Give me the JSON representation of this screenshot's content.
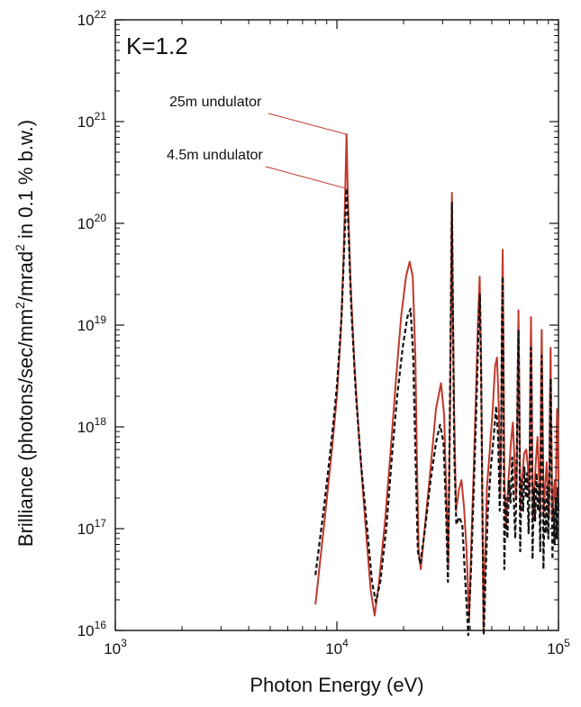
{
  "chart_data": {
    "type": "line",
    "xlabel": "Photon Energy (eV)",
    "ylabel_parts": [
      "Brilliance (photons/sec/mm",
      "2",
      "/mrad",
      "2",
      " in 0.1 % b.w.)"
    ],
    "x_scale": "log",
    "y_scale": "log",
    "xlim": [
      1000,
      100000
    ],
    "ylim": [
      1e+16,
      1e+22
    ],
    "x_ticks": [
      {
        "value": 1000,
        "base": "10",
        "exp": "3"
      },
      {
        "value": 10000,
        "base": "10",
        "exp": "4"
      },
      {
        "value": 100000,
        "base": "10",
        "exp": "5"
      }
    ],
    "y_ticks": [
      {
        "value": 1e+16,
        "base": "10",
        "exp": "16"
      },
      {
        "value": 1e+17,
        "base": "10",
        "exp": "17"
      },
      {
        "value": 1e+18,
        "base": "10",
        "exp": "18"
      },
      {
        "value": 1e+19,
        "base": "10",
        "exp": "19"
      },
      {
        "value": 1e+20,
        "base": "10",
        "exp": "20"
      },
      {
        "value": 1e+21,
        "base": "10",
        "exp": "21"
      },
      {
        "value": 1e+22,
        "base": "10",
        "exp": "22"
      }
    ],
    "grid": false,
    "corner_label": "K=1.2",
    "series": [
      {
        "name": "25m undulator",
        "color": "#c0392b",
        "style": "solid",
        "points": [
          [
            8000,
            1.8e+16
          ],
          [
            8800,
            1.2e+17
          ],
          [
            9500,
            6e+17
          ],
          [
            10000,
            2e+18
          ],
          [
            10400,
            8e+18
          ],
          [
            10700,
            4e+19
          ],
          [
            10900,
            2e+20
          ],
          [
            11050,
            7.5e+20
          ],
          [
            11200,
            2e+20
          ],
          [
            11500,
            3e+19
          ],
          [
            12000,
            4e+18
          ],
          [
            12700,
            6e+17
          ],
          [
            13500,
            1e+17
          ],
          [
            14200,
            2.5e+16
          ],
          [
            14800,
            1.4e+16
          ],
          [
            15500,
            3e+16
          ],
          [
            16500,
            1.2e+17
          ],
          [
            17500,
            6e+17
          ],
          [
            18500,
            3e+18
          ],
          [
            19500,
            1.2e+19
          ],
          [
            20500,
            3e+19
          ],
          [
            21300,
            4.2e+19
          ],
          [
            22000,
            3e+19
          ],
          [
            22600,
            5e+18
          ],
          [
            23000,
            4e+17
          ],
          [
            23400,
            6e+16
          ],
          [
            23900,
            4e+16
          ],
          [
            25000,
            1.1e+17
          ],
          [
            26500,
            4e+17
          ],
          [
            28000,
            1.5e+18
          ],
          [
            29500,
            2.7e+18
          ],
          [
            30500,
            1.3e+18
          ],
          [
            31200,
            2e+17
          ],
          [
            31800,
            4e+16
          ],
          [
            32400,
            1.5e+18
          ],
          [
            32800,
            3e+19
          ],
          [
            33050,
            2e+20
          ],
          [
            33300,
            3e+19
          ],
          [
            33800,
            1.5e+18
          ],
          [
            34500,
            1.5e+17
          ],
          [
            35500,
            2.4e+17
          ],
          [
            36500,
            3e+17
          ],
          [
            37500,
            1.6e+17
          ],
          [
            38500,
            6e+16
          ],
          [
            39500,
            1.3e+16
          ],
          [
            40500,
            8e+16
          ],
          [
            41500,
            4e+17
          ],
          [
            42500,
            2.5e+18
          ],
          [
            43400,
            1.2e+19
          ],
          [
            44100,
            3e+19
          ],
          [
            44700,
            5e+18
          ],
          [
            45300,
            2e+17
          ],
          [
            45900,
            1e+16
          ],
          [
            46500,
            4e+16
          ],
          [
            47500,
            2.5e+17
          ],
          [
            49000,
            6e+17
          ],
          [
            50500,
            1.5e+18
          ],
          [
            51800,
            4e+18
          ],
          [
            52800,
            4.8e+18
          ],
          [
            53800,
            1.5e+18
          ],
          [
            54600,
            2e+17
          ],
          [
            55200,
            8e+17
          ],
          [
            55700,
            2e+19
          ],
          [
            56000,
            5.5e+19
          ],
          [
            56400,
            8e+18
          ],
          [
            57000,
            3e+17
          ],
          [
            58000,
            1e+17
          ],
          [
            59500,
            3e+17
          ],
          [
            61000,
            7e+17
          ],
          [
            62200,
            1.1e+18
          ],
          [
            63300,
            5e+17
          ],
          [
            64200,
            2e+17
          ],
          [
            64800,
            3e+17
          ],
          [
            65500,
            4e+18
          ],
          [
            66000,
            1.4e+19
          ],
          [
            66500,
            3e+18
          ],
          [
            67300,
            1.5e+17
          ],
          [
            68500,
            3e+17
          ],
          [
            70000,
            5.5e+17
          ],
          [
            71500,
            6e+17
          ],
          [
            72800,
            4e+17
          ],
          [
            73800,
            2e+17
          ],
          [
            74600,
            3e+18
          ],
          [
            75200,
            1.2e+19
          ],
          [
            75800,
            2e+18
          ],
          [
            76600,
            1.2e+17
          ],
          [
            77500,
            2e+17
          ],
          [
            79000,
            4.5e+17
          ],
          [
            80500,
            8e+17
          ],
          [
            81800,
            3e+17
          ],
          [
            82700,
            1.3e+17
          ],
          [
            83500,
            3e+18
          ],
          [
            84000,
            9e+18
          ],
          [
            84700,
            1.5e+18
          ],
          [
            85700,
            1.4e+17
          ],
          [
            87000,
            2.5e+17
          ],
          [
            88500,
            4.5e+17
          ],
          [
            89800,
            2e+17
          ],
          [
            90700,
            1.3e+17
          ],
          [
            91500,
            1.8e+18
          ],
          [
            92200,
            6e+18
          ],
          [
            92800,
            1.2e+18
          ],
          [
            93800,
            1.2e+17
          ],
          [
            95000,
            2.2e+17
          ],
          [
            96200,
            3e+17
          ],
          [
            97000,
            1.5e+17
          ],
          [
            97800,
            5e+17
          ],
          [
            98500,
            1.5e+18
          ],
          [
            99300,
            1.2e+18
          ],
          [
            100000,
            3e+17
          ]
        ]
      },
      {
        "name": "4.5m undulator",
        "color": "#111111",
        "style": "dashed",
        "points": [
          [
            8000,
            3.5e+16
          ],
          [
            8800,
            1.8e+17
          ],
          [
            9500,
            8e+17
          ],
          [
            10000,
            2.5e+18
          ],
          [
            10500,
            1.2e+19
          ],
          [
            10800,
            6e+19
          ],
          [
            11050,
            2.2e+20
          ],
          [
            11250,
            1e+20
          ],
          [
            11600,
            1.5e+19
          ],
          [
            12200,
            2e+18
          ],
          [
            12900,
            4e+17
          ],
          [
            13700,
            1e+17
          ],
          [
            14400,
            3e+16
          ],
          [
            15000,
            1.9e+16
          ],
          [
            15700,
            3e+16
          ],
          [
            16700,
            1e+17
          ],
          [
            17700,
            5e+17
          ],
          [
            18700,
            2e+18
          ],
          [
            19800,
            6e+18
          ],
          [
            20800,
            1.2e+19
          ],
          [
            21500,
            1.45e+19
          ],
          [
            22100,
            5e+18
          ],
          [
            22700,
            4e+17
          ],
          [
            23200,
            6e+16
          ],
          [
            23800,
            4.5e+16
          ],
          [
            25000,
            1e+17
          ],
          [
            26500,
            3e+17
          ],
          [
            28000,
            7e+17
          ],
          [
            29200,
            1.05e+18
          ],
          [
            30300,
            7e+17
          ],
          [
            31100,
            1.5e+17
          ],
          [
            31700,
            3e+16
          ],
          [
            32200,
            5e+17
          ],
          [
            32700,
            1.5e+19
          ],
          [
            33050,
            1.6e+20
          ],
          [
            33350,
            1.5e+19
          ],
          [
            33900,
            5e+17
          ],
          [
            34600,
            1.1e+17
          ],
          [
            35600,
            1.3e+17
          ],
          [
            36800,
            1.1e+17
          ],
          [
            38000,
            3e+16
          ],
          [
            39200,
            9000000000000000.0
          ],
          [
            40300,
            4e+16
          ],
          [
            41500,
            2.5e+17
          ],
          [
            42600,
            1.5e+18
          ],
          [
            43500,
            8e+18
          ],
          [
            44200,
            2e+19
          ],
          [
            44800,
            3e+18
          ],
          [
            45400,
            1.5e+17
          ],
          [
            46000,
            9000000000000000.0
          ],
          [
            46800,
            3e+16
          ],
          [
            48000,
            1.5e+17
          ],
          [
            49500,
            4e+17
          ],
          [
            51000,
            8e+17
          ],
          [
            52300,
            1.6e+18
          ],
          [
            53400,
            8e+17
          ],
          [
            54300,
            1.5e+17
          ],
          [
            55000,
            5e+17
          ],
          [
            55600,
            1.2e+19
          ],
          [
            56000,
            3e+19
          ],
          [
            56400,
            5e+18
          ],
          [
            57000,
            4e+16
          ],
          [
            57800,
            2e+17
          ],
          [
            58800,
            8e+16
          ],
          [
            59800,
            3e+17
          ],
          [
            60800,
            1.8e+17
          ],
          [
            61800,
            5e+17
          ],
          [
            62800,
            2e+17
          ],
          [
            63800,
            8e+16
          ],
          [
            64600,
            2.5e+17
          ],
          [
            65500,
            3e+18
          ],
          [
            66000,
            9e+18
          ],
          [
            66500,
            2e+18
          ],
          [
            67200,
            6e+16
          ],
          [
            68200,
            3e+17
          ],
          [
            69200,
            1.5e+17
          ],
          [
            70200,
            4e+17
          ],
          [
            71200,
            2e+17
          ],
          [
            72200,
            3.5e+17
          ],
          [
            73300,
            9e+16
          ],
          [
            74300,
            4e+17
          ],
          [
            75100,
            6e+18
          ],
          [
            75700,
            1.5e+18
          ],
          [
            76400,
            5e+16
          ],
          [
            77400,
            2.5e+17
          ],
          [
            78500,
            1.2e+17
          ],
          [
            79600,
            3.5e+17
          ],
          [
            80700,
            1.5e+17
          ],
          [
            81800,
            2.8e+17
          ],
          [
            82800,
            6e+16
          ],
          [
            83500,
            1.5e+18
          ],
          [
            84000,
            5e+18
          ],
          [
            84700,
            8e+17
          ],
          [
            85500,
            4e+16
          ],
          [
            86600,
            2e+17
          ],
          [
            87800,
            9e+16
          ],
          [
            89000,
            2.6e+17
          ],
          [
            90000,
            8e+16
          ],
          [
            91000,
            3e+17
          ],
          [
            91800,
            1.5e+18
          ],
          [
            92300,
            3e+18
          ],
          [
            93000,
            5e+17
          ],
          [
            93900,
            5e+16
          ],
          [
            95000,
            1.6e+17
          ],
          [
            96100,
            7e+16
          ],
          [
            97200,
            2e+17
          ],
          [
            98200,
            8e+16
          ],
          [
            99200,
            2.5e+17
          ],
          [
            100000,
            1.5e+17
          ]
        ]
      }
    ],
    "annotations": [
      {
        "text": "25m undulator",
        "points_to_x": 11050,
        "points_to_y": 7.5e+20
      },
      {
        "text": "4.5m undulator",
        "points_to_x": 11050,
        "points_to_y": 2.2e+20
      }
    ]
  }
}
